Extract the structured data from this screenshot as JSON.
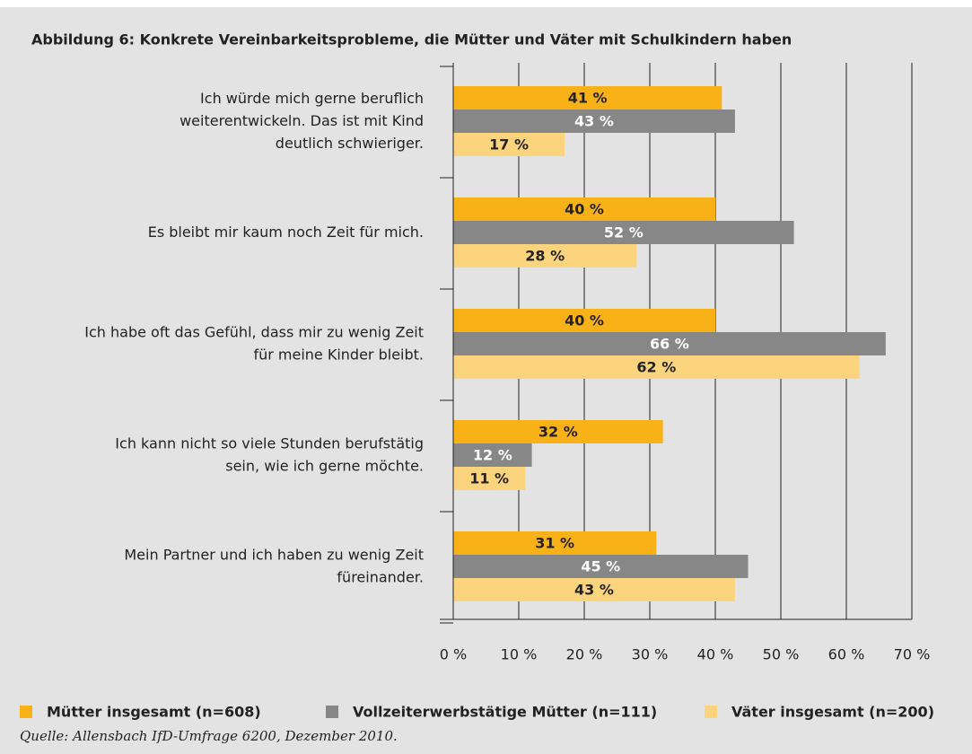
{
  "chart_data": {
    "type": "barh",
    "title": "Abbildung 6: Konkrete Vereinbarkeitsprobleme, die Mütter und Väter mit Schulkindern haben",
    "categories": [
      "Ich würde mich gerne beruflich\nweiterentwickeln. Das ist mit Kind\ndeutlich schwieriger.",
      "Es bleibt mir kaum noch Zeit für mich.",
      "Ich habe oft das Gefühl, dass mir zu wenig Zeit\nfür meine Kinder bleibt.",
      "Ich kann nicht so viele Stunden berufstätig\nsein, wie ich gerne möchte.",
      "Mein Partner und ich haben zu wenig Zeit\nfüreinander."
    ],
    "series": [
      {
        "name": "Mütter insgesamt (n=608)",
        "color": "#f8b117",
        "text_color": "#222222",
        "values": [
          41,
          40,
          40,
          32,
          31
        ],
        "value_labels": [
          "41 %",
          "40 %",
          "40 %",
          "32 %",
          "31 %"
        ]
      },
      {
        "name": "Vollzeiterwerbstätige Mütter (n=111)",
        "color": "#878787",
        "text_color": "#ffffff",
        "values": [
          43,
          52,
          66,
          12,
          45
        ],
        "value_labels": [
          "43 %",
          "52 %",
          "66 %",
          "12 %",
          "45 %"
        ]
      },
      {
        "name": "Väter insgesamt (n=200)",
        "color": "#fdd47e",
        "text_color": "#222222",
        "values": [
          17,
          28,
          62,
          11,
          43
        ],
        "value_labels": [
          "17 %",
          "28 %",
          "62 %",
          "11 %",
          "43 %"
        ]
      }
    ],
    "xlim": [
      0,
      70
    ],
    "xticks": [
      {
        "value": 0,
        "label": "0 %"
      },
      {
        "value": 10,
        "label": "10 %"
      },
      {
        "value": 20,
        "label": "20 %"
      },
      {
        "value": 30,
        "label": "30 %"
      },
      {
        "value": 40,
        "label": "40 %"
      },
      {
        "value": 50,
        "label": "50 %"
      },
      {
        "value": 60,
        "label": "60 %"
      },
      {
        "value": 70,
        "label": "70 %"
      }
    ],
    "grid": true,
    "source": "Quelle: Allensbach IfD-Umfrage 6200, Dezember 2010."
  }
}
